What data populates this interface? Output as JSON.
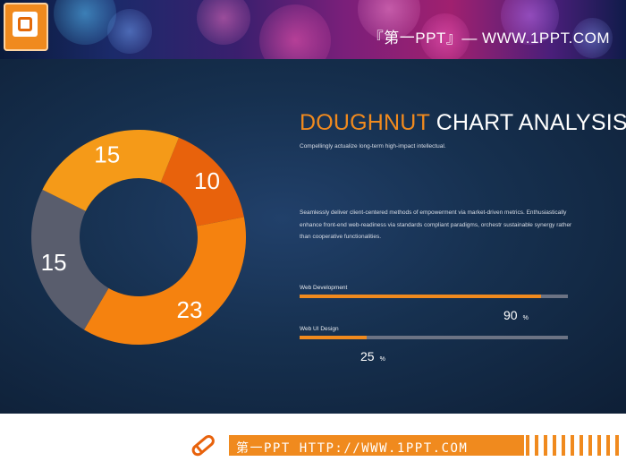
{
  "header": {
    "title": "『第一PPT』— WWW.1PPT.COM",
    "logo_icon": "powerpoint-logo-icon"
  },
  "slide": {
    "title_accent": "DOUGHNUT",
    "title_rest": " CHART ANALYSIS",
    "subtitle": "Compellingly  actualize  long-term  high-impact  intellectual.",
    "paragraph": "Seamlessly  deliver  client-centered  methods  of  empowerment  via  market-driven  metrics.  Enthusiastically  enhance  front-end  web-readiness  via  standards  compliant  paradigms,  orchestr  sustainable  synergy  rather  than  cooperative  functionalities.",
    "progress": [
      {
        "label": "Web Development",
        "value": 90,
        "value_text": "90",
        "unit": "%"
      },
      {
        "label": "Web UI Design",
        "value": 25,
        "value_text": "25",
        "unit": "%"
      }
    ]
  },
  "chart_data": {
    "type": "pie",
    "style": "doughnut",
    "categories": [
      "",
      "",
      "",
      ""
    ],
    "values": [
      10,
      23,
      15,
      15
    ],
    "labels": [
      "10",
      "23",
      "15",
      "15"
    ],
    "colors": [
      "#e8620c",
      "#f5820f",
      "#595d6d",
      "#f59a18"
    ],
    "start_angle_deg": 22,
    "direction": "clockwise"
  },
  "footer": {
    "text": "第一PPT HTTP://WWW.1PPT.COM",
    "icon": "pencil-icon"
  },
  "colors": {
    "accent": "#f08a1e",
    "track": "#6c7384",
    "slide_background": "#16304f"
  }
}
